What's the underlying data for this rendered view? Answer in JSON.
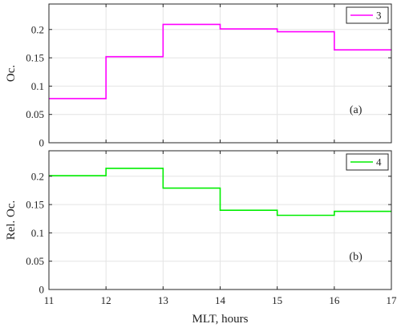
{
  "chart_data": [
    {
      "type": "line",
      "step": true,
      "panel_label": "(a)",
      "xlabel": "",
      "ylabel": "Oc.",
      "xlim": [
        11,
        17
      ],
      "ylim": [
        0,
        0.245
      ],
      "xticks": [
        11,
        12,
        13,
        14,
        15,
        16,
        17
      ],
      "yticks": [
        0,
        0.05,
        0.1,
        0.15,
        0.2
      ],
      "ytick_labels": [
        "0",
        "0.05",
        "0.1",
        "0.15",
        "0.2"
      ],
      "grid": true,
      "legend_position": "top-right",
      "series": [
        {
          "name": "3",
          "color": "#ff00ff",
          "bins": [
            [
              11,
              12,
              0.078
            ],
            [
              12,
              13,
              0.152
            ],
            [
              13,
              14,
              0.209
            ],
            [
              14,
              15,
              0.201
            ],
            [
              15,
              16,
              0.196
            ],
            [
              16,
              17,
              0.164
            ]
          ]
        }
      ]
    },
    {
      "type": "line",
      "step": true,
      "panel_label": "(b)",
      "xlabel": "MLT, hours",
      "ylabel": "Rel. Oc.",
      "xlim": [
        11,
        17
      ],
      "ylim": [
        0,
        0.245
      ],
      "xticks": [
        11,
        12,
        13,
        14,
        15,
        16,
        17
      ],
      "xtick_labels": [
        "11",
        "12",
        "13",
        "14",
        "15",
        "16",
        "17"
      ],
      "yticks": [
        0,
        0.05,
        0.1,
        0.15,
        0.2
      ],
      "ytick_labels": [
        "0",
        "0.05",
        "0.1",
        "0.15",
        "0.2"
      ],
      "grid": true,
      "legend_position": "top-right",
      "series": [
        {
          "name": "4",
          "color": "#00ee00",
          "bins": [
            [
              11,
              12,
              0.201
            ],
            [
              12,
              13,
              0.214
            ],
            [
              13,
              14,
              0.179
            ],
            [
              14,
              15,
              0.14
            ],
            [
              15,
              16,
              0.131
            ],
            [
              16,
              17,
              0.138
            ]
          ]
        }
      ]
    }
  ]
}
